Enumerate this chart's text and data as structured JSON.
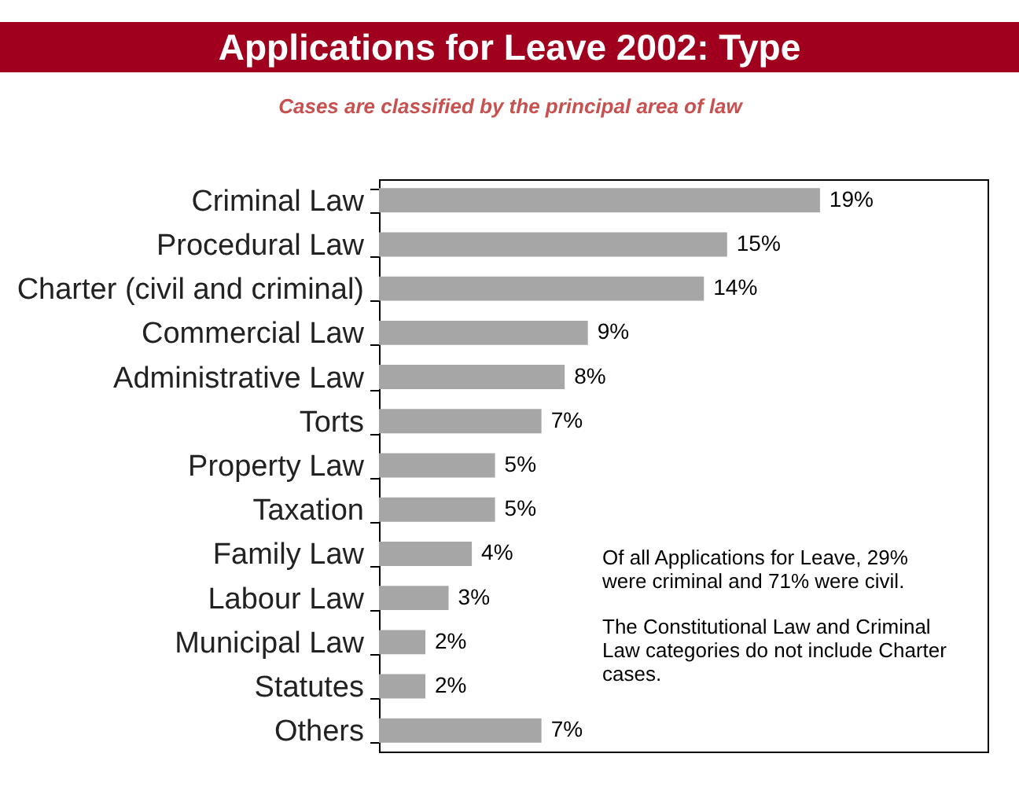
{
  "chart_data": {
    "type": "bar",
    "orientation": "horizontal",
    "title": "Applications for Leave 2002: Type",
    "subtitle": "Cases are classified by the principal area of law",
    "categories": [
      "Criminal Law",
      "Procedural Law",
      "Charter (civil and criminal)",
      "Commercial Law",
      "Administrative Law",
      "Torts",
      "Property Law",
      "Taxation",
      "Family Law",
      "Labour Law",
      "Municipal Law",
      "Statutes",
      "Others"
    ],
    "values": [
      19,
      15,
      14,
      9,
      8,
      7,
      5,
      5,
      4,
      3,
      2,
      2,
      7
    ],
    "value_labels": [
      "19%",
      "15%",
      "14%",
      "9%",
      "8%",
      "7%",
      "5%",
      "5%",
      "4%",
      "3%",
      "2%",
      "2%",
      "7%"
    ],
    "color": "#a6a6a6",
    "annotations": [
      "Of all Applications for Leave, 29% were criminal and 71% were civil.",
      "The Constitutional Law and Criminal Law categories do not include Charter cases."
    ]
  }
}
